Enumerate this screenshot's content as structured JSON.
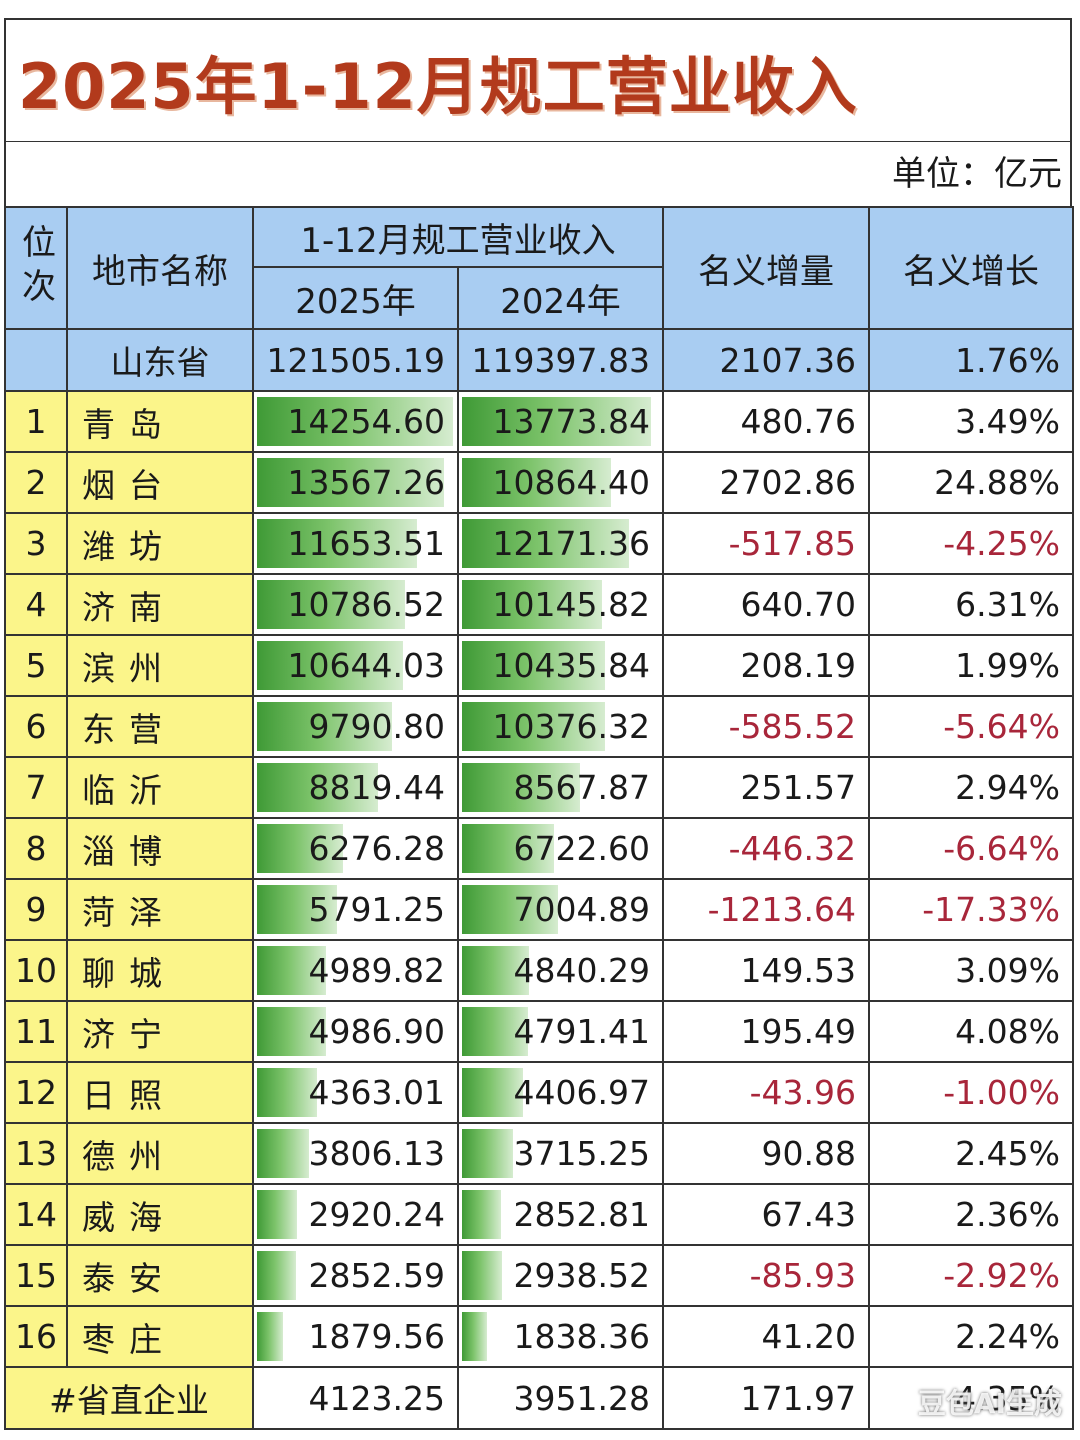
{
  "title": "2025年1-12月规工营业收入",
  "unit": "单位：亿元",
  "headers": {
    "rank": "位次",
    "city": "地市名称",
    "revenue_group": "1-12月规工营业收入",
    "y2025": "2025年",
    "y2024": "2024年",
    "increase": "名义增量",
    "growth": "名义增长"
  },
  "province": {
    "name": "山东省",
    "v2025": "121505.19",
    "v2024": "119397.83",
    "increase": "2107.36",
    "growth": "1.76%"
  },
  "rows": [
    {
      "rank": "1",
      "city": "青岛",
      "v2025": "14254.60",
      "v2024": "13773.84",
      "increase": "480.76",
      "growth": "3.49%"
    },
    {
      "rank": "2",
      "city": "烟台",
      "v2025": "13567.26",
      "v2024": "10864.40",
      "increase": "2702.86",
      "growth": "24.88%"
    },
    {
      "rank": "3",
      "city": "潍坊",
      "v2025": "11653.51",
      "v2024": "12171.36",
      "increase": "-517.85",
      "growth": "-4.25%"
    },
    {
      "rank": "4",
      "city": "济南",
      "v2025": "10786.52",
      "v2024": "10145.82",
      "increase": "640.70",
      "growth": "6.31%"
    },
    {
      "rank": "5",
      "city": "滨州",
      "v2025": "10644.03",
      "v2024": "10435.84",
      "increase": "208.19",
      "growth": "1.99%"
    },
    {
      "rank": "6",
      "city": "东营",
      "v2025": "9790.80",
      "v2024": "10376.32",
      "increase": "-585.52",
      "growth": "-5.64%"
    },
    {
      "rank": "7",
      "city": "临沂",
      "v2025": "8819.44",
      "v2024": "8567.87",
      "increase": "251.57",
      "growth": "2.94%"
    },
    {
      "rank": "8",
      "city": "淄博",
      "v2025": "6276.28",
      "v2024": "6722.60",
      "increase": "-446.32",
      "growth": "-6.64%"
    },
    {
      "rank": "9",
      "city": "菏泽",
      "v2025": "5791.25",
      "v2024": "7004.89",
      "increase": "-1213.64",
      "growth": "-17.33%"
    },
    {
      "rank": "10",
      "city": "聊城",
      "v2025": "4989.82",
      "v2024": "4840.29",
      "increase": "149.53",
      "growth": "3.09%"
    },
    {
      "rank": "11",
      "city": "济宁",
      "v2025": "4986.90",
      "v2024": "4791.41",
      "increase": "195.49",
      "growth": "4.08%"
    },
    {
      "rank": "12",
      "city": "日照",
      "v2025": "4363.01",
      "v2024": "4406.97",
      "increase": "-43.96",
      "growth": "-1.00%"
    },
    {
      "rank": "13",
      "city": "德州",
      "v2025": "3806.13",
      "v2024": "3715.25",
      "increase": "90.88",
      "growth": "2.45%"
    },
    {
      "rank": "14",
      "city": "威海",
      "v2025": "2920.24",
      "v2024": "2852.81",
      "increase": "67.43",
      "growth": "2.36%"
    },
    {
      "rank": "15",
      "city": "泰安",
      "v2025": "2852.59",
      "v2024": "2938.52",
      "increase": "-85.93",
      "growth": "-2.92%"
    },
    {
      "rank": "16",
      "city": "枣庄",
      "v2025": "1879.56",
      "v2024": "1838.36",
      "increase": "41.20",
      "growth": "2.24%"
    }
  ],
  "total": {
    "label": "#省直企业",
    "v2025": "4123.25",
    "v2024": "3951.28",
    "increase": "171.97",
    "growth": "4.35%"
  },
  "bar_max": 14254.6,
  "watermark": "豆包AI生成",
  "colors": {
    "title": "#b23a1c",
    "header_bg": "#a9cdf2",
    "rank_bg": "#fbf58a",
    "bar": "#3f9a36",
    "negative": "#a8263a"
  }
}
